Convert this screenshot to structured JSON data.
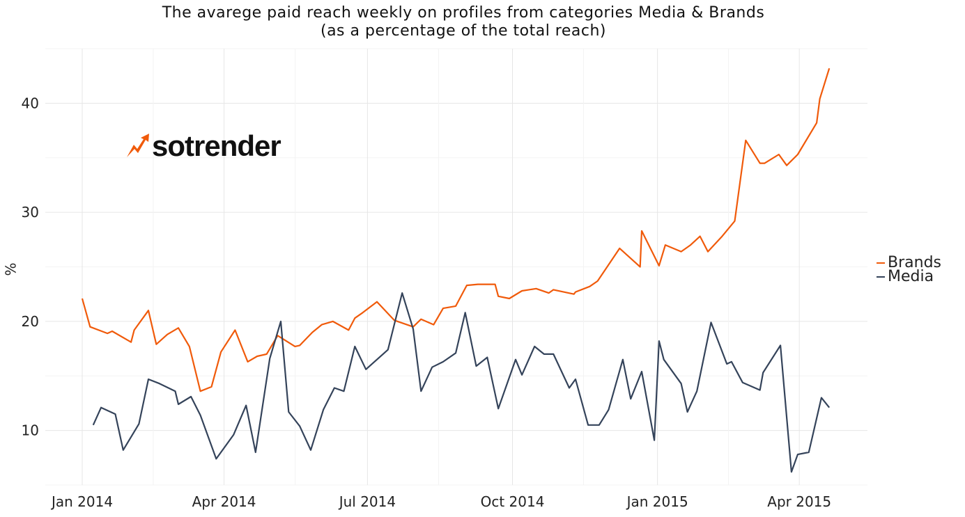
{
  "chart_data": {
    "type": "line",
    "title": "The avarege paid reach weekly on profiles from categories Media & Brands",
    "subtitle": "(as a percentage of the total reach)",
    "xlabel": "",
    "ylabel": "%",
    "ylim": [
      5,
      45
    ],
    "xlim": [
      "2013-12-10",
      "2015-05-15"
    ],
    "yticks": [
      10,
      20,
      30,
      40
    ],
    "xticks": [
      {
        "date": "2014-01-01",
        "label": "Jan 2014"
      },
      {
        "date": "2014-04-01",
        "label": "Apr 2014"
      },
      {
        "date": "2014-07-01",
        "label": "Jul 2014"
      },
      {
        "date": "2014-10-01",
        "label": "Oct 2014"
      },
      {
        "date": "2015-01-01",
        "label": "Jan 2015"
      },
      {
        "date": "2015-04-01",
        "label": "Apr 2015"
      }
    ],
    "grid": true,
    "legend_position": "right",
    "series": [
      {
        "name": "Brands",
        "color": "#f05a0a",
        "x": [
          "2014-01-01",
          "2014-01-06",
          "2014-01-17",
          "2014-01-20",
          "2014-02-01",
          "2014-02-03",
          "2014-02-12",
          "2014-02-17",
          "2014-02-24",
          "2014-03-03",
          "2014-03-10",
          "2014-03-17",
          "2014-03-24",
          "2014-03-30",
          "2014-04-08",
          "2014-04-16",
          "2014-04-22",
          "2014-04-28",
          "2014-05-05",
          "2014-05-16",
          "2014-05-19",
          "2014-05-27",
          "2014-06-02",
          "2014-06-09",
          "2014-06-19",
          "2014-06-23",
          "2014-06-28",
          "2014-07-07",
          "2014-07-18",
          "2014-07-30",
          "2014-08-04",
          "2014-08-12",
          "2014-08-18",
          "2014-08-26",
          "2014-09-02",
          "2014-09-09",
          "2014-09-20",
          "2014-09-22",
          "2014-09-29",
          "2014-10-07",
          "2014-10-16",
          "2014-10-24",
          "2014-10-27",
          "2014-11-09",
          "2014-11-10",
          "2014-11-19",
          "2014-11-24",
          "2014-12-01",
          "2014-12-08",
          "2014-12-21",
          "2014-12-22",
          "2015-01-02",
          "2015-01-06",
          "2015-01-16",
          "2015-01-22",
          "2015-01-28",
          "2015-02-02",
          "2015-02-11",
          "2015-02-19",
          "2015-02-26",
          "2015-03-07",
          "2015-03-10",
          "2015-03-19",
          "2015-03-24",
          "2015-03-31",
          "2015-04-12",
          "2015-04-14",
          "2015-04-20"
        ],
        "y": [
          22.1,
          19.5,
          18.9,
          19.1,
          18.1,
          19.2,
          21.0,
          17.9,
          18.8,
          19.4,
          17.7,
          13.6,
          14.0,
          17.2,
          19.2,
          16.3,
          16.8,
          17.0,
          18.7,
          17.7,
          17.8,
          19.0,
          19.7,
          20.0,
          19.2,
          20.3,
          20.8,
          21.8,
          20.1,
          19.5,
          20.2,
          19.7,
          21.2,
          21.4,
          23.3,
          23.4,
          23.4,
          22.3,
          22.1,
          22.8,
          23.0,
          22.6,
          22.9,
          22.5,
          22.7,
          23.2,
          23.7,
          25.2,
          26.7,
          25.0,
          28.3,
          25.1,
          27.0,
          26.4,
          27.0,
          27.8,
          26.4,
          27.8,
          29.2,
          36.6,
          34.5,
          34.5,
          35.3,
          34.3,
          35.3,
          38.2,
          40.4,
          43.2
        ]
      },
      {
        "name": "Media",
        "color": "#34435a",
        "x": [
          "2014-01-08",
          "2014-01-13",
          "2014-01-22",
          "2014-01-27",
          "2014-02-06",
          "2014-02-12",
          "2014-02-19",
          "2014-03-01",
          "2014-03-03",
          "2014-03-11",
          "2014-03-17",
          "2014-03-27",
          "2014-04-07",
          "2014-04-15",
          "2014-04-21",
          "2014-04-30",
          "2014-05-07",
          "2014-05-12",
          "2014-05-19",
          "2014-05-26",
          "2014-06-03",
          "2014-06-10",
          "2014-06-16",
          "2014-06-23",
          "2014-06-30",
          "2014-07-14",
          "2014-07-23",
          "2014-07-30",
          "2014-08-04",
          "2014-08-11",
          "2014-08-18",
          "2014-08-26",
          "2014-09-01",
          "2014-09-08",
          "2014-09-15",
          "2014-09-22",
          "2014-10-03",
          "2014-10-07",
          "2014-10-15",
          "2014-10-21",
          "2014-10-27",
          "2014-11-06",
          "2014-11-10",
          "2014-11-18",
          "2014-11-25",
          "2014-12-01",
          "2014-12-10",
          "2014-12-15",
          "2014-12-22",
          "2014-12-30",
          "2015-01-02",
          "2015-01-05",
          "2015-01-16",
          "2015-01-20",
          "2015-01-26",
          "2015-02-04",
          "2015-02-14",
          "2015-02-17",
          "2015-02-24",
          "2015-03-07",
          "2015-03-09",
          "2015-03-20",
          "2015-03-27",
          "2015-03-31",
          "2015-04-07",
          "2015-04-15",
          "2015-04-20"
        ],
        "y": [
          10.5,
          12.1,
          11.5,
          8.2,
          10.6,
          14.7,
          14.3,
          13.6,
          12.4,
          13.1,
          11.4,
          7.4,
          9.6,
          12.3,
          8.0,
          16.6,
          20.0,
          11.7,
          10.4,
          8.2,
          11.9,
          13.9,
          13.6,
          17.7,
          15.6,
          17.4,
          22.6,
          19.3,
          13.6,
          15.8,
          16.3,
          17.1,
          20.8,
          15.9,
          16.7,
          12.0,
          16.5,
          15.1,
          17.7,
          17.0,
          17.0,
          13.9,
          14.7,
          10.5,
          10.5,
          11.9,
          16.5,
          12.9,
          15.4,
          9.1,
          18.2,
          16.5,
          14.3,
          11.7,
          13.6,
          19.9,
          16.1,
          16.3,
          14.4,
          13.7,
          15.3,
          17.8,
          6.2,
          7.8,
          8.0,
          13.0,
          12.1
        ]
      }
    ]
  },
  "logo": {
    "text": "sotrender"
  }
}
